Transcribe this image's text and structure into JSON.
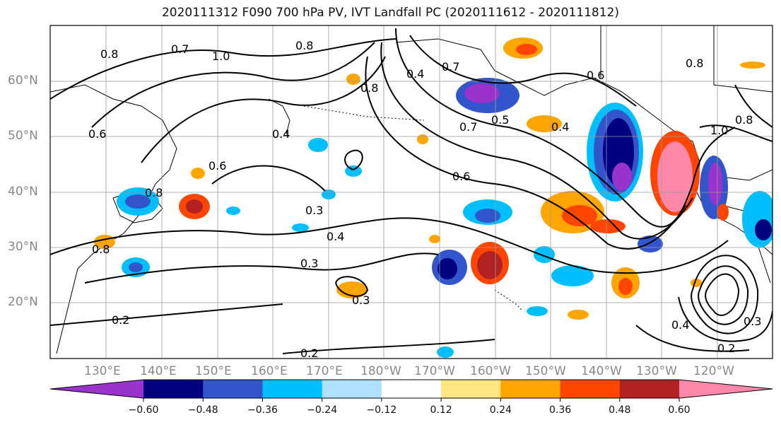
{
  "title": "2020111312 F090 700 hPa PV, IVT Landfall PC (2020111612 - 2020111812)",
  "lat_labels": [
    "60°N",
    "50°N",
    "40°N",
    "30°N",
    "20°N"
  ],
  "lon_labels": [
    "130°E",
    "140°E",
    "150°E",
    "160°E",
    "170°E",
    "180°W",
    "170°W",
    "160°W",
    "150°W",
    "140°W",
    "130°W",
    "120°W"
  ],
  "contour_labels": [
    "0.8",
    "0.7",
    "1.0",
    "0.8",
    "0.8",
    "0.4",
    "0.7",
    "0.5",
    "0.4",
    "0.6",
    "0.7",
    "0.8",
    "0.6",
    "0.4",
    "0.6",
    "0.8",
    "0.6",
    "0.3",
    "0.4",
    "0.3",
    "0.3",
    "0.2",
    "0.2",
    "0.4",
    "0.3",
    "0.2",
    "0.8",
    "1.0",
    "0.8"
  ],
  "colorbar": {
    "colors": [
      "#9933cc",
      "#000080",
      "#3355cc",
      "#00bfff",
      "#b0e0ff",
      "#ffffff",
      "#ffe680",
      "#ffa500",
      "#ff4500",
      "#b22222",
      "#ff88aa"
    ],
    "tick_labels": [
      "−0.60",
      "−0.48",
      "−0.36",
      "−0.24",
      "−0.12",
      "0.12",
      "0.24",
      "0.36",
      "0.48",
      "0.60"
    ],
    "tick_values": [
      -0.6,
      -0.48,
      -0.36,
      -0.24,
      -0.12,
      0.12,
      0.24,
      0.36,
      0.48,
      0.6
    ]
  },
  "map_extent": {
    "lon_min": 120,
    "lon_max": 250,
    "lat_min": 10,
    "lat_max": 70
  }
}
